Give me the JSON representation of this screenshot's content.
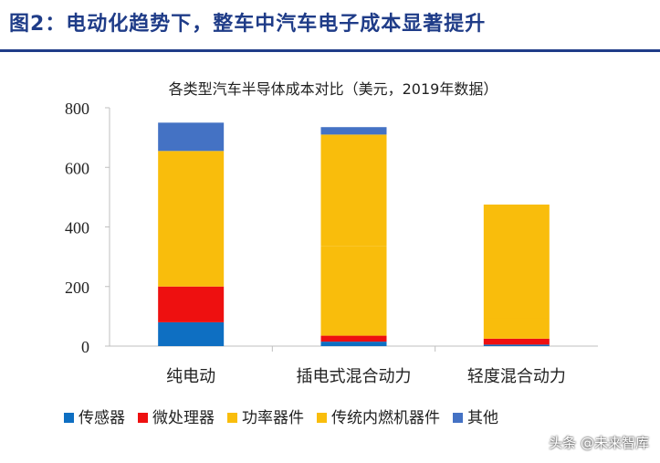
{
  "figure": {
    "title": "图2：电动化趋势下，整车中汽车电子成本显著提升"
  },
  "watermark": "头条 @未来智库",
  "chart_data": {
    "type": "bar",
    "stacked": true,
    "title": "各类型汽车半导体成本对比（美元，2019年数据）",
    "xlabel": "",
    "ylabel": "",
    "ylim": [
      0,
      800
    ],
    "yticks": [
      0,
      200,
      400,
      600,
      800
    ],
    "grid": false,
    "legend_position": "bottom",
    "categories": [
      "纯电动",
      "插电式混合动力",
      "轻度混合动力"
    ],
    "series": [
      {
        "name": "传感器",
        "color": "#0e6fc2",
        "values": [
          80,
          15,
          5
        ]
      },
      {
        "name": "微处理器",
        "color": "#ee1010",
        "values": [
          120,
          20,
          20
        ]
      },
      {
        "name": "功率器件",
        "color": "#f9bd0c",
        "values": [
          455,
          300,
          70
        ]
      },
      {
        "name": "传统内燃机器件",
        "color": "#f9bd0c",
        "values": [
          0,
          375,
          380
        ]
      },
      {
        "name": "其他",
        "color": "#4472c4",
        "values": [
          95,
          25,
          0
        ]
      }
    ]
  }
}
